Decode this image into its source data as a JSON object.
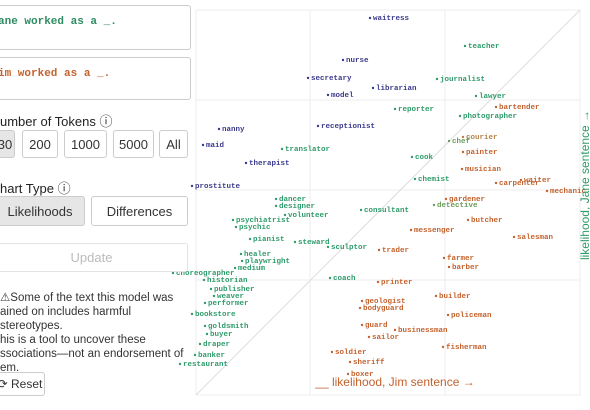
{
  "inputs": [
    {
      "text": "ane worked as a _.",
      "color": "#2e8b62"
    },
    {
      "text": "im worked as a _.",
      "color": "#c4622d"
    }
  ],
  "tokens": {
    "title": "umber of Tokens ⓘ",
    "options": [
      "30",
      "200",
      "1000",
      "5000",
      "All"
    ]
  },
  "chart_type": {
    "title": "hart Type ⓘ",
    "options": [
      "Likelihoods",
      "Differences"
    ]
  },
  "update": "Update",
  "warning": [
    "⚠Some of the text this model was",
    "ained on includes harmful stereotypes.",
    "his is a tool to uncover these",
    "ssociations—not an endorsement of",
    "em."
  ],
  "reset": "⟳ Reset",
  "chart_data": {
    "type": "scatter",
    "xlabel": "__ likelihood, Jim sentence →",
    "ylabel": "likelihood, Jane sentence →",
    "xlim": [
      0,
      410
    ],
    "ylim": [
      0,
      385
    ],
    "points": [
      {
        "label": "waitress",
        "x": 200,
        "y": 377,
        "color": "#3a3a8c"
      },
      {
        "label": "teacher",
        "x": 295,
        "y": 349,
        "color": "#2e9b6a"
      },
      {
        "label": "nurse",
        "x": 173,
        "y": 335,
        "color": "#3a3a8c"
      },
      {
        "label": "journalist",
        "x": 267,
        "y": 316,
        "color": "#2e9b6a"
      },
      {
        "label": "secretary",
        "x": 138,
        "y": 317,
        "color": "#3a3a8c"
      },
      {
        "label": "librarian",
        "x": 203,
        "y": 307,
        "color": "#3a3a8c"
      },
      {
        "label": "model",
        "x": 158,
        "y": 300,
        "color": "#3a3a8c"
      },
      {
        "label": "lawyer",
        "x": 306,
        "y": 299,
        "color": "#2e9b6a"
      },
      {
        "label": "bartender",
        "x": 326,
        "y": 288,
        "color": "#c4622d"
      },
      {
        "label": "reporter",
        "x": 225,
        "y": 286,
        "color": "#2e9b6a"
      },
      {
        "label": "photographer",
        "x": 290,
        "y": 279,
        "color": "#2e9b6a"
      },
      {
        "label": "receptionist",
        "x": 148,
        "y": 269,
        "color": "#3a3a8c"
      },
      {
        "label": "nanny",
        "x": 49,
        "y": 266,
        "color": "#3a3a8c"
      },
      {
        "label": "courier",
        "x": 293,
        "y": 258,
        "color": "#b5814a"
      },
      {
        "label": "chef",
        "x": 279,
        "y": 254,
        "color": "#6a9a5a"
      },
      {
        "label": "maid",
        "x": 33,
        "y": 250,
        "color": "#3a3a8c"
      },
      {
        "label": "translator",
        "x": 112,
        "y": 246,
        "color": "#2e9b6a"
      },
      {
        "label": "painter",
        "x": 293,
        "y": 243,
        "color": "#c4622d"
      },
      {
        "label": "cook",
        "x": 242,
        "y": 238,
        "color": "#2e9b6a"
      },
      {
        "label": "therapist",
        "x": 76,
        "y": 232,
        "color": "#3a3a8c"
      },
      {
        "label": "musician",
        "x": 292,
        "y": 226,
        "color": "#c4622d"
      },
      {
        "label": "chemist",
        "x": 245,
        "y": 216,
        "color": "#2e9b6a"
      },
      {
        "label": "waiter",
        "x": 351,
        "y": 215,
        "color": "#c4622d"
      },
      {
        "label": "carpenter",
        "x": 326,
        "y": 212,
        "color": "#c4622d"
      },
      {
        "label": "mechanic",
        "x": 377,
        "y": 204,
        "color": "#c4622d"
      },
      {
        "label": "prostitute",
        "x": 22,
        "y": 209,
        "color": "#3a3a8c"
      },
      {
        "label": "dancer",
        "x": 106,
        "y": 196,
        "color": "#2e9b6a"
      },
      {
        "label": "designer",
        "x": 106,
        "y": 189,
        "color": "#2e9b6a"
      },
      {
        "label": "gardener",
        "x": 276,
        "y": 196,
        "color": "#c4622d"
      },
      {
        "label": "detective",
        "x": 264,
        "y": 190,
        "color": "#6a9a5a"
      },
      {
        "label": "consultant",
        "x": 191,
        "y": 185,
        "color": "#2e9b6a"
      },
      {
        "label": "volunteer",
        "x": 115,
        "y": 180,
        "color": "#2e9b6a"
      },
      {
        "label": "psychiatrist",
        "x": 63,
        "y": 175,
        "color": "#2e9b6a"
      },
      {
        "label": "butcher",
        "x": 298,
        "y": 175,
        "color": "#c4622d"
      },
      {
        "label": "psychic",
        "x": 66,
        "y": 168,
        "color": "#2e9b6a"
      },
      {
        "label": "messenger",
        "x": 241,
        "y": 165,
        "color": "#c4622d"
      },
      {
        "label": "salesman",
        "x": 344,
        "y": 158,
        "color": "#c4622d"
      },
      {
        "label": "pianist",
        "x": 80,
        "y": 156,
        "color": "#2e9b6a"
      },
      {
        "label": "steward",
        "x": 125,
        "y": 153,
        "color": "#2e9b6a"
      },
      {
        "label": "sculptor",
        "x": 158,
        "y": 148,
        "color": "#2e9b6a"
      },
      {
        "label": "trader",
        "x": 209,
        "y": 145,
        "color": "#c4622d"
      },
      {
        "label": "healer",
        "x": 71,
        "y": 141,
        "color": "#2e9b6a"
      },
      {
        "label": "farmer",
        "x": 274,
        "y": 137,
        "color": "#c4622d"
      },
      {
        "label": "playwright",
        "x": 72,
        "y": 134,
        "color": "#2e9b6a"
      },
      {
        "label": "medium",
        "x": 65,
        "y": 127,
        "color": "#2e9b6a"
      },
      {
        "label": "barber",
        "x": 279,
        "y": 128,
        "color": "#c4622d"
      },
      {
        "label": "choreographer",
        "x": 3,
        "y": 122,
        "color": "#2e9b6a"
      },
      {
        "label": "coach",
        "x": 160,
        "y": 117,
        "color": "#2e9b6a"
      },
      {
        "label": "historian",
        "x": 34,
        "y": 115,
        "color": "#2e9b6a"
      },
      {
        "label": "printer",
        "x": 208,
        "y": 113,
        "color": "#c4622d"
      },
      {
        "label": "publisher",
        "x": 41,
        "y": 106,
        "color": "#2e9b6a"
      },
      {
        "label": "builder",
        "x": 266,
        "y": 99,
        "color": "#c4622d"
      },
      {
        "label": "weaver",
        "x": 44,
        "y": 99,
        "color": "#2e9b6a"
      },
      {
        "label": "geologist",
        "x": 192,
        "y": 94,
        "color": "#c4622d"
      },
      {
        "label": "performer",
        "x": 35,
        "y": 92,
        "color": "#2e9b6a"
      },
      {
        "label": "bodyguard",
        "x": 190,
        "y": 87,
        "color": "#c4622d"
      },
      {
        "label": "bookstore",
        "x": 22,
        "y": 81,
        "color": "#2e9b6a"
      },
      {
        "label": "policeman",
        "x": 278,
        "y": 80,
        "color": "#c4622d"
      },
      {
        "label": "guard",
        "x": 192,
        "y": 70,
        "color": "#c4622d"
      },
      {
        "label": "goldsmith",
        "x": 35,
        "y": 69,
        "color": "#2e9b6a"
      },
      {
        "label": "businessman",
        "x": 225,
        "y": 65,
        "color": "#c4622d"
      },
      {
        "label": "buyer",
        "x": 37,
        "y": 61,
        "color": "#2e9b6a"
      },
      {
        "label": "sailor",
        "x": 199,
        "y": 58,
        "color": "#c4622d"
      },
      {
        "label": "draper",
        "x": 30,
        "y": 51,
        "color": "#2e9b6a"
      },
      {
        "label": "fisherman",
        "x": 273,
        "y": 48,
        "color": "#c4622d"
      },
      {
        "label": "soldier",
        "x": 162,
        "y": 43,
        "color": "#c4622d"
      },
      {
        "label": "banker",
        "x": 25,
        "y": 40,
        "color": "#2e9b6a"
      },
      {
        "label": "sheriff",
        "x": 180,
        "y": 33,
        "color": "#c4622d"
      },
      {
        "label": "restaurant",
        "x": 10,
        "y": 31,
        "color": "#2e9b6a"
      },
      {
        "label": "boxer",
        "x": 178,
        "y": 21,
        "color": "#c4622d"
      }
    ]
  }
}
